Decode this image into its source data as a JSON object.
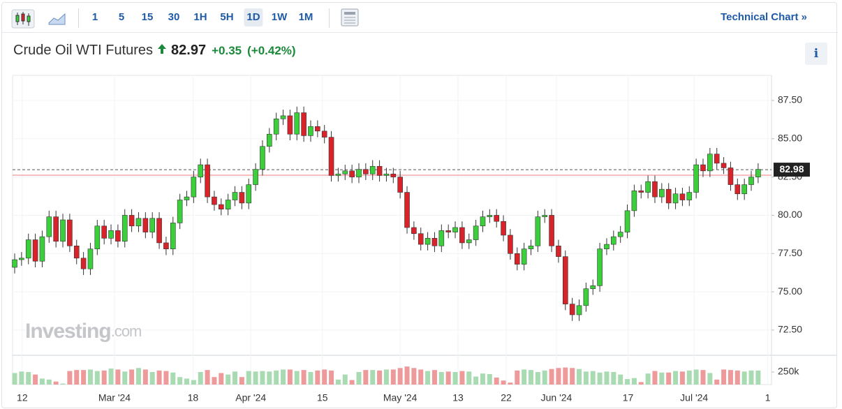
{
  "toolbar": {
    "intervals": [
      "1",
      "5",
      "15",
      "30",
      "1H",
      "5H",
      "1D",
      "1W",
      "1M"
    ],
    "technical_chart": "Technical Chart »"
  },
  "header": {
    "name": "Crude Oil WTI Futures",
    "price": "82.97",
    "change": "+0.35",
    "change_pct": "(+0.42%)",
    "info": "i"
  },
  "watermark": {
    "brand": "Investing",
    "suffix": ".com"
  },
  "chart_data": {
    "type": "candlestick",
    "open": [
      76.6,
      77.1,
      77.2,
      78.4,
      77.0,
      78.6,
      79.9,
      78.3,
      79.7,
      78.0,
      77.2,
      76.5,
      77.8,
      79.3,
      78.5,
      79.0,
      78.3,
      80.0,
      79.3,
      79.8,
      78.9,
      79.8,
      78.2,
      77.8,
      79.5,
      81.0,
      81.2,
      82.5,
      83.3,
      81.2,
      80.7,
      80.4,
      81.0,
      81.5,
      80.8,
      82.0,
      83.0,
      84.5,
      85.3,
      86.3,
      86.5,
      85.3,
      86.7,
      85.2,
      85.8,
      85.5,
      85.1,
      82.6,
      82.7,
      82.9,
      82.5,
      83.0,
      82.7,
      83.2,
      82.6,
      82.7,
      82.5,
      81.5,
      79.2,
      78.8,
      78.1,
      78.5,
      78.0,
      79.0,
      78.9,
      79.2,
      78.2,
      78.4,
      79.3,
      79.9,
      80.0,
      79.6,
      78.7,
      77.5,
      76.8,
      77.8,
      78.0,
      79.9,
      80.0,
      78.0,
      77.3,
      74.2,
      73.5,
      74.1,
      75.2,
      75.4,
      77.8,
      78.1,
      78.6,
      78.9,
      80.3,
      81.6,
      81.5,
      82.2,
      81.2,
      81.7,
      80.8,
      81.4,
      81.0,
      81.5,
      83.3,
      82.9,
      84.0,
      83.4,
      83.1,
      82.0,
      81.4,
      82.0,
      82.5
    ],
    "high": [
      77.5,
      77.6,
      78.8,
      78.8,
      79.0,
      80.3,
      80.3,
      80.1,
      80.1,
      78.4,
      77.6,
      78.2,
      79.7,
      79.7,
      79.4,
      79.4,
      80.4,
      80.4,
      80.2,
      80.2,
      80.2,
      80.2,
      78.6,
      79.9,
      81.4,
      81.6,
      82.9,
      83.7,
      83.7,
      81.6,
      81.1,
      81.4,
      81.9,
      81.9,
      82.4,
      83.4,
      84.9,
      85.7,
      86.7,
      86.9,
      86.9,
      87.1,
      87.1,
      86.2,
      86.2,
      85.9,
      85.5,
      83.1,
      83.3,
      83.3,
      83.4,
      83.4,
      83.6,
      83.6,
      83.1,
      83.1,
      82.9,
      81.9,
      79.6,
      79.2,
      78.9,
      78.9,
      79.4,
      79.4,
      79.6,
      79.6,
      78.8,
      79.7,
      80.3,
      80.4,
      80.4,
      80.0,
      79.1,
      77.9,
      78.2,
      78.4,
      80.3,
      80.4,
      80.4,
      78.4,
      77.7,
      74.6,
      74.5,
      75.6,
      75.8,
      78.2,
      78.5,
      79.0,
      79.3,
      80.7,
      82.0,
      82.0,
      82.6,
      82.6,
      82.1,
      82.1,
      81.8,
      81.8,
      81.9,
      83.7,
      83.7,
      84.4,
      84.4,
      83.8,
      83.5,
      82.4,
      82.4,
      82.9,
      83.4
    ],
    "low": [
      76.2,
      76.7,
      76.8,
      76.6,
      76.6,
      78.2,
      77.9,
      77.9,
      77.6,
      76.8,
      76.1,
      76.1,
      77.4,
      78.1,
      78.1,
      77.9,
      77.9,
      78.9,
      78.9,
      78.5,
      78.5,
      77.8,
      77.4,
      77.4,
      79.1,
      80.6,
      80.8,
      82.1,
      80.8,
      80.3,
      80.0,
      80.0,
      80.6,
      80.4,
      80.4,
      81.6,
      82.6,
      84.1,
      84.9,
      85.9,
      84.9,
      84.9,
      84.8,
      84.8,
      85.1,
      84.7,
      82.2,
      82.2,
      82.3,
      82.1,
      82.1,
      82.3,
      82.3,
      82.2,
      82.2,
      82.1,
      81.1,
      78.8,
      78.4,
      77.7,
      77.7,
      77.6,
      77.6,
      78.5,
      78.5,
      77.8,
      77.8,
      78.0,
      78.9,
      79.5,
      79.2,
      78.3,
      77.1,
      76.4,
      76.4,
      77.4,
      77.6,
      79.5,
      77.6,
      76.9,
      73.8,
      73.1,
      73.1,
      73.7,
      74.8,
      75.0,
      77.4,
      77.7,
      78.2,
      78.5,
      79.9,
      81.1,
      81.1,
      80.8,
      80.8,
      80.4,
      80.4,
      80.6,
      80.6,
      81.1,
      82.5,
      82.5,
      83.0,
      82.7,
      81.6,
      81.0,
      81.0,
      81.6,
      82.1
    ],
    "close": [
      77.1,
      77.2,
      78.4,
      77.0,
      78.6,
      79.9,
      78.3,
      79.7,
      78.0,
      77.2,
      76.5,
      77.8,
      79.3,
      78.5,
      79.0,
      78.3,
      80.0,
      79.3,
      79.8,
      78.9,
      79.8,
      78.2,
      77.8,
      79.5,
      81.0,
      81.2,
      82.5,
      83.3,
      81.2,
      80.7,
      80.4,
      81.0,
      81.5,
      80.8,
      82.0,
      83.0,
      84.5,
      85.3,
      86.3,
      86.5,
      85.3,
      86.7,
      85.2,
      85.8,
      85.5,
      85.1,
      82.6,
      82.7,
      82.9,
      82.5,
      83.0,
      82.7,
      83.2,
      82.6,
      82.7,
      82.5,
      81.5,
      79.2,
      78.8,
      78.1,
      78.5,
      78.0,
      79.0,
      78.9,
      79.2,
      78.2,
      78.4,
      79.3,
      79.9,
      80.0,
      79.6,
      78.7,
      77.5,
      76.8,
      77.8,
      78.0,
      79.9,
      80.0,
      78.0,
      77.3,
      74.2,
      73.5,
      74.1,
      75.2,
      75.4,
      77.8,
      78.1,
      78.6,
      78.9,
      80.3,
      81.6,
      81.5,
      82.2,
      81.2,
      81.7,
      80.8,
      81.4,
      81.0,
      81.5,
      83.3,
      82.9,
      84.0,
      83.4,
      83.1,
      82.0,
      81.4,
      82.0,
      82.5,
      83.0
    ],
    "volume": [
      230000,
      260000,
      250000,
      200000,
      120000,
      100000,
      60000,
      20000,
      270000,
      290000,
      290000,
      300000,
      270000,
      280000,
      320000,
      300000,
      260000,
      300000,
      330000,
      300000,
      250000,
      280000,
      270000,
      240000,
      150000,
      120000,
      90000,
      250000,
      290000,
      150000,
      230000,
      200000,
      260000,
      150000,
      270000,
      260000,
      270000,
      260000,
      280000,
      300000,
      300000,
      270000,
      290000,
      250000,
      280000,
      300000,
      280000,
      100000,
      200000,
      90000,
      250000,
      290000,
      290000,
      280000,
      300000,
      300000,
      330000,
      360000,
      330000,
      300000,
      270000,
      290000,
      250000,
      260000,
      250000,
      270000,
      260000,
      160000,
      220000,
      210000,
      140000,
      80000,
      40000,
      280000,
      300000,
      290000,
      250000,
      280000,
      310000,
      330000,
      340000,
      330000,
      310000,
      260000,
      270000,
      240000,
      260000,
      250000,
      200000,
      110000,
      130000,
      50000,
      220000,
      270000,
      240000,
      240000,
      270000,
      260000,
      280000,
      300000,
      290000,
      230000,
      100000,
      300000,
      290000,
      280000,
      260000,
      280000,
      280000
    ],
    "up_color": "#3ccf3c",
    "down_color": "#d9232a",
    "up_volume_color": "#a9dbb3",
    "down_volume_color": "#ee9a9a",
    "ylim": [
      70.9,
      89.14
    ],
    "yticks": [
      {
        "value": 72.5,
        "label": "72.50"
      },
      {
        "value": 75,
        "label": "75.00"
      },
      {
        "value": 77.5,
        "label": "77.50"
      },
      {
        "value": 80,
        "label": "80.00"
      },
      {
        "value": 82.5,
        "label": "82.50"
      },
      {
        "value": 85,
        "label": "85.00"
      },
      {
        "value": 87.5,
        "label": "87.50"
      }
    ],
    "volume_ylim": [
      0,
      570000
    ],
    "volume_yticks": [
      {
        "value": 250000,
        "label": "250k"
      }
    ],
    "x_labels": [
      {
        "value": 1.1,
        "label": "12"
      },
      {
        "value": 14.5,
        "label": "Mar '24"
      },
      {
        "value": 25.9,
        "label": "18"
      },
      {
        "value": 34.3,
        "label": "Apr '24"
      },
      {
        "value": 44.7,
        "label": "15"
      },
      {
        "value": 56,
        "label": "May '24"
      },
      {
        "value": 64.4,
        "label": "13"
      },
      {
        "value": 71.4,
        "label": "22"
      },
      {
        "value": 78.7,
        "label": "Jun '24"
      },
      {
        "value": 89.1,
        "label": "17"
      },
      {
        "value": 98.7,
        "label": "Jul '24"
      },
      {
        "value": 109.4,
        "label": "1"
      }
    ],
    "last_price": 82.98,
    "prev_close": 82.62,
    "grid": true
  }
}
